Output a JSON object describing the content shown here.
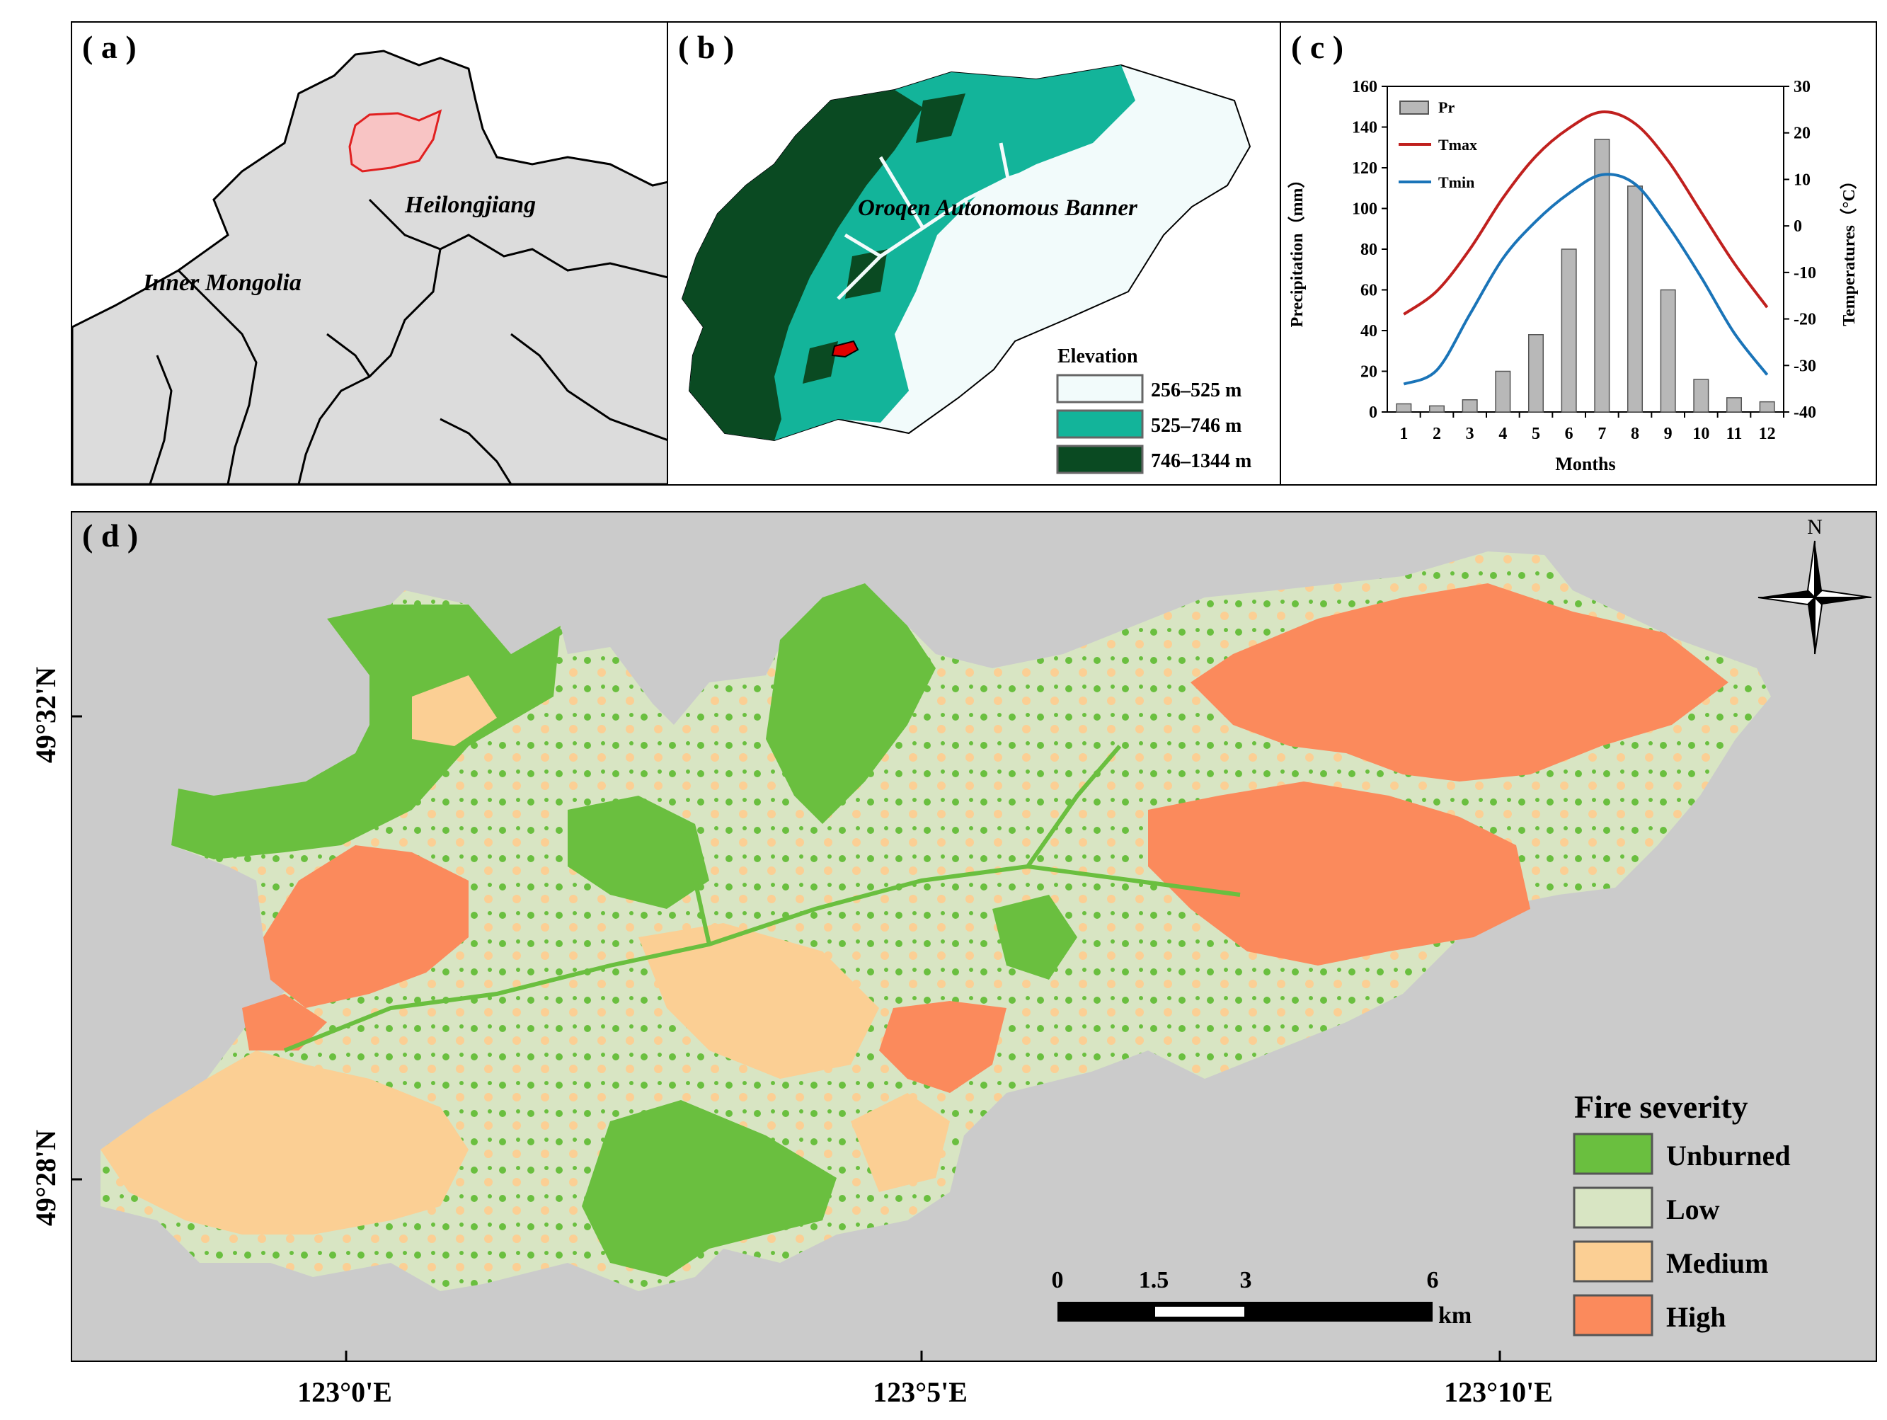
{
  "panel_a": {
    "label": "( a )",
    "region_labels": [
      "Heilongjiang",
      "Inner Mongolia"
    ]
  },
  "panel_b": {
    "label": "( b )",
    "area_label": "Oroqen Autonomous Banner",
    "legend_title": "Elevation",
    "legend": [
      {
        "label": "256–525 m",
        "color": "#f2fbfb"
      },
      {
        "label": "525–746 m",
        "color": "#13b49a"
      },
      {
        "label": "746–1344 m",
        "color": "#0a4a22"
      }
    ]
  },
  "panel_c": {
    "label": "( c )",
    "chart_data": {
      "type": "bar+line",
      "categories": [
        "1",
        "2",
        "3",
        "4",
        "5",
        "6",
        "7",
        "8",
        "9",
        "10",
        "11",
        "12"
      ],
      "xlabel": "Months",
      "ylabel_left": "Precipitation（mm）",
      "ylabel_right": "Temperatures（°C）",
      "ylim_left": [
        0,
        160
      ],
      "ylim_right": [
        -40,
        30
      ],
      "yticks_left": [
        "0",
        "20",
        "40",
        "60",
        "80",
        "100",
        "120",
        "140",
        "160"
      ],
      "yticks_right": [
        "-40",
        "-30",
        "-20",
        "-10",
        "0",
        "10",
        "20",
        "30"
      ],
      "legend": [
        "Pr",
        "Tmax",
        "Tmin"
      ],
      "legend_placement": "top-left",
      "series": [
        {
          "name": "Pr",
          "type": "bar",
          "axis": "left",
          "color": "#b8b8b8",
          "values": [
            4,
            3,
            6,
            20,
            38,
            80,
            134,
            111,
            60,
            16,
            7,
            5
          ]
        },
        {
          "name": "Tmax",
          "type": "line",
          "axis": "right",
          "color": "#c0201e",
          "values": [
            -19,
            -14,
            -5,
            6,
            15,
            21,
            24.5,
            22,
            14,
            3,
            -8,
            -17.5
          ]
        },
        {
          "name": "Tmin",
          "type": "line",
          "axis": "right",
          "color": "#1a74b8",
          "values": [
            -34,
            -31,
            -19,
            -7,
            1,
            7,
            11,
            9,
            0,
            -11,
            -23,
            -32
          ]
        }
      ]
    }
  },
  "panel_d": {
    "label": "( d )",
    "north": "N",
    "lat_labels": [
      "49°32'N",
      "49°28'N"
    ],
    "lon_labels": [
      "123°0'E",
      "123°5'E",
      "123°10'E"
    ],
    "scalebar": {
      "ticks": [
        "0",
        "1.5",
        "3",
        "6"
      ],
      "unit": "km"
    },
    "legend_title": "Fire severity",
    "legend": [
      {
        "label": "Unburned",
        "color": "#6abf3f"
      },
      {
        "label": "Low",
        "color": "#d8e5c3"
      },
      {
        "label": "Medium",
        "color": "#fbcf94"
      },
      {
        "label": "High",
        "color": "#fb8a5c"
      }
    ]
  }
}
